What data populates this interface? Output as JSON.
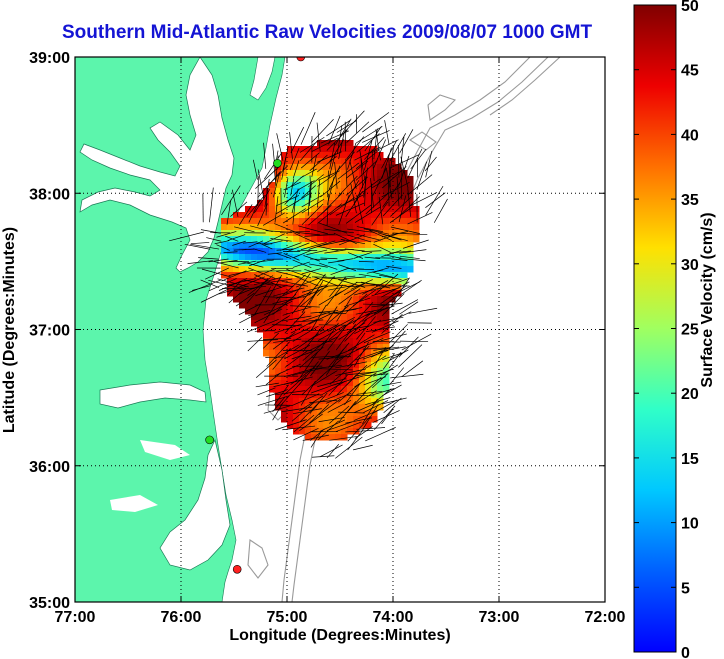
{
  "title": "Southern Mid-Atlantic Raw Velocities 2009/08/07 1000 GMT",
  "map": {
    "xlabel": "Longitude (Degrees:Minutes)",
    "ylabel": "Latitude (Degrees:Minutes)",
    "lon_ticks": [
      {
        "value": -77,
        "label": "77:00"
      },
      {
        "value": -76,
        "label": "76:00"
      },
      {
        "value": -75,
        "label": "75:00"
      },
      {
        "value": -74,
        "label": "74:00"
      },
      {
        "value": -73,
        "label": "73:00"
      },
      {
        "value": -72,
        "label": "72:00"
      }
    ],
    "lat_ticks": [
      {
        "value": 39,
        "label": "39:00"
      },
      {
        "value": 38,
        "label": "38:00"
      },
      {
        "value": 37,
        "label": "37:00"
      },
      {
        "value": 36,
        "label": "36:00"
      },
      {
        "value": 35,
        "label": "35:00"
      }
    ],
    "lon_range": [
      -77,
      -72
    ],
    "lat_range": [
      35,
      39
    ],
    "grid": "dotted",
    "land_color": "#5cf5ac",
    "bathymetry_color": "#9a9a9a",
    "stations": [
      {
        "lon": -74.87,
        "lat": 39.0,
        "color": "#ff2020"
      },
      {
        "lon": -75.09,
        "lat": 38.22,
        "color": "#22dd22"
      },
      {
        "lon": -75.73,
        "lat": 36.19,
        "color": "#22dd22"
      },
      {
        "lon": -75.47,
        "lat": 35.24,
        "color": "#ff2020"
      }
    ]
  },
  "colorbar": {
    "label": "Surface Velocity (cm/s)",
    "min": 0,
    "max": 50,
    "ticks": [
      {
        "value": 0,
        "label": "0"
      },
      {
        "value": 5,
        "label": "5"
      },
      {
        "value": 10,
        "label": "10"
      },
      {
        "value": 15,
        "label": "15"
      },
      {
        "value": 20,
        "label": "20"
      },
      {
        "value": 25,
        "label": "25"
      },
      {
        "value": 30,
        "label": "30"
      },
      {
        "value": 35,
        "label": "35"
      },
      {
        "value": 40,
        "label": "40"
      },
      {
        "value": 45,
        "label": "45"
      },
      {
        "value": 50,
        "label": "50"
      }
    ],
    "colormap": "jet"
  }
}
